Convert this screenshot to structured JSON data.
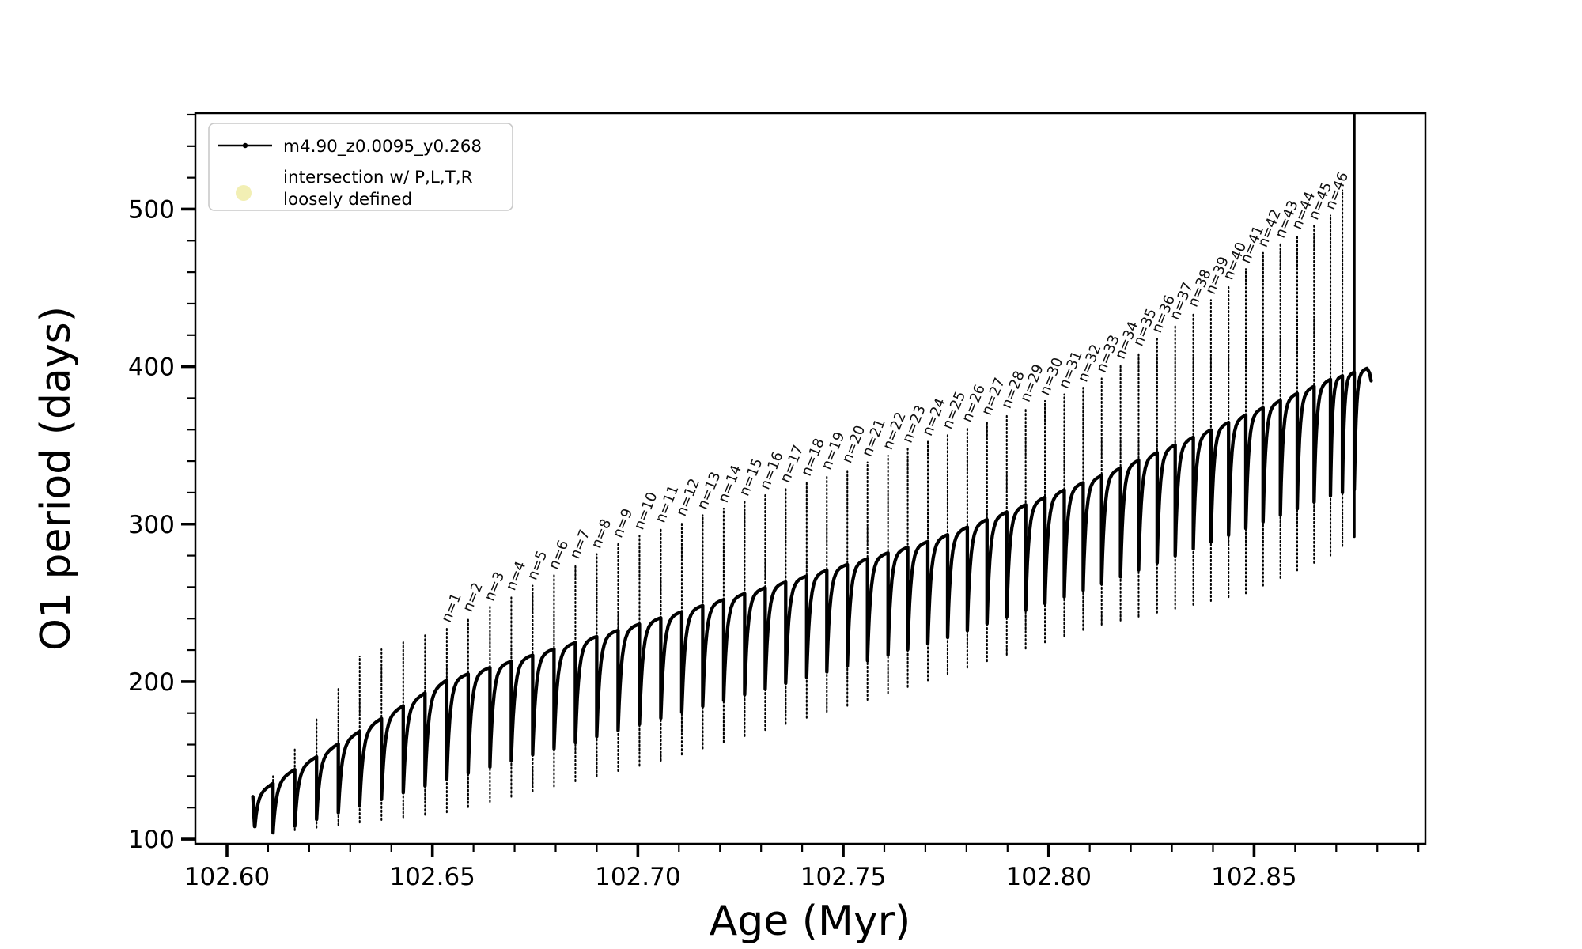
{
  "figure": {
    "background": "#ffffff",
    "frame_color": "#000000",
    "curve_color": "#000000"
  },
  "axes": {
    "x_title": "Age (Myr)",
    "y_title": "O1 period (days)",
    "x_tick_labels": [
      "102.60",
      "102.65",
      "102.70",
      "102.75",
      "102.80",
      "102.85"
    ],
    "y_tick_labels": [
      "100",
      "200",
      "300",
      "400",
      "500"
    ]
  },
  "legend": {
    "border_color": "#c9c9c9",
    "entries": [
      {
        "type": "line-marker",
        "label": "m4.90_z0.0095_y0.268",
        "color": "#000000"
      },
      {
        "type": "circle-marker",
        "label_line1": "intersection w/ P,L,T,R",
        "label_line2": "loosely defined",
        "color": "#f2efb4"
      }
    ]
  },
  "chart_data": {
    "type": "line",
    "title": "",
    "xlabel": "Age (Myr)",
    "ylabel": "O1 period (days)",
    "xlim": [
      102.5923,
      102.8917
    ],
    "ylim": [
      97,
      561
    ],
    "xticks": [
      102.6,
      102.65,
      102.7,
      102.75,
      102.8,
      102.85
    ],
    "yticks": [
      100,
      200,
      300,
      400,
      500
    ],
    "x_minor_step": 0.01,
    "y_minor_step": 20,
    "grid": false,
    "legend_position": "upper left",
    "series_name": "m4.90_z0.0095_y0.268",
    "data_start": {
      "age": 102.6063,
      "period": 127
    },
    "data_end": {
      "age": 102.8775,
      "period": 399
    },
    "pulse_ages": [
      102.6112,
      102.6165,
      102.6218,
      102.6271,
      102.6323,
      102.6376,
      102.6429,
      102.6482,
      102.6535,
      102.6587,
      102.664,
      102.6692,
      102.6744,
      102.6796,
      102.6848,
      102.69,
      102.6952,
      102.7004,
      102.7056,
      102.7107,
      102.7158,
      102.7209,
      102.726,
      102.731,
      102.736,
      102.7411,
      102.746,
      102.751,
      102.7559,
      102.7609,
      102.7657,
      102.7706,
      102.7754,
      102.7802,
      102.785,
      102.7898,
      102.7944,
      102.7991,
      102.8038,
      102.8084,
      102.8129,
      102.8175,
      102.8219,
      102.8264,
      102.8308,
      102.8352,
      102.8395,
      102.8438,
      102.848,
      102.8522,
      102.8564,
      102.8605,
      102.8646,
      102.8686,
      102.8715,
      102.8744
    ],
    "first_labeled_cycle_index": 8,
    "pulse_labels": [
      "n=1",
      "n=2",
      "n=3",
      "n=4",
      "n=5",
      "n=6",
      "n=7",
      "n=8",
      "n=9",
      "n=10",
      "n=11",
      "n=12",
      "n=13",
      "n=14",
      "n=15",
      "n=16",
      "n=17",
      "n=18",
      "n=19",
      "n=20",
      "n=21",
      "n=22",
      "n=23",
      "n=24",
      "n=25",
      "n=26",
      "n=27",
      "n=28",
      "n=29",
      "n=30",
      "n=31",
      "n=32",
      "n=33",
      "n=34",
      "n=35",
      "n=36",
      "n=37",
      "n=38",
      "n=39",
      "n=40",
      "n=41",
      "n=42",
      "n=43",
      "n=44",
      "n=45",
      "n=46"
    ],
    "envelopes": {
      "plateau": {
        "ages": [
          102.6063,
          102.6144,
          102.6535,
          102.718,
          102.772,
          102.815,
          102.8686,
          102.8775
        ],
        "periods": [
          127,
          141,
          201,
          250,
          290,
          333,
          392,
          399
        ]
      },
      "spike_top": {
        "ages": [
          102.6112,
          102.6165,
          102.6218,
          102.6271,
          102.6323,
          102.6535,
          102.697,
          102.758,
          102.811,
          102.842,
          102.852,
          102.863,
          102.8686,
          102.8715,
          102.8744
        ],
        "periods": [
          140,
          158,
          176,
          196,
          216,
          234,
          290,
          341,
          389,
          447,
          472,
          487,
          496,
          512,
          561
        ]
      },
      "spike_bottom": {
        "ages": [
          102.6112,
          102.6535,
          102.706,
          102.758,
          102.811,
          102.848,
          102.8686,
          102.8744
        ],
        "periods": [
          104,
          117,
          150,
          190,
          235,
          256,
          280,
          292
        ]
      },
      "dip": {
        "ages": [
          102.6112,
          102.6535,
          102.718,
          102.772,
          102.815,
          102.8686,
          102.8744
        ],
        "periods": [
          104,
          138,
          186,
          225,
          264,
          318,
          322
        ]
      }
    }
  }
}
